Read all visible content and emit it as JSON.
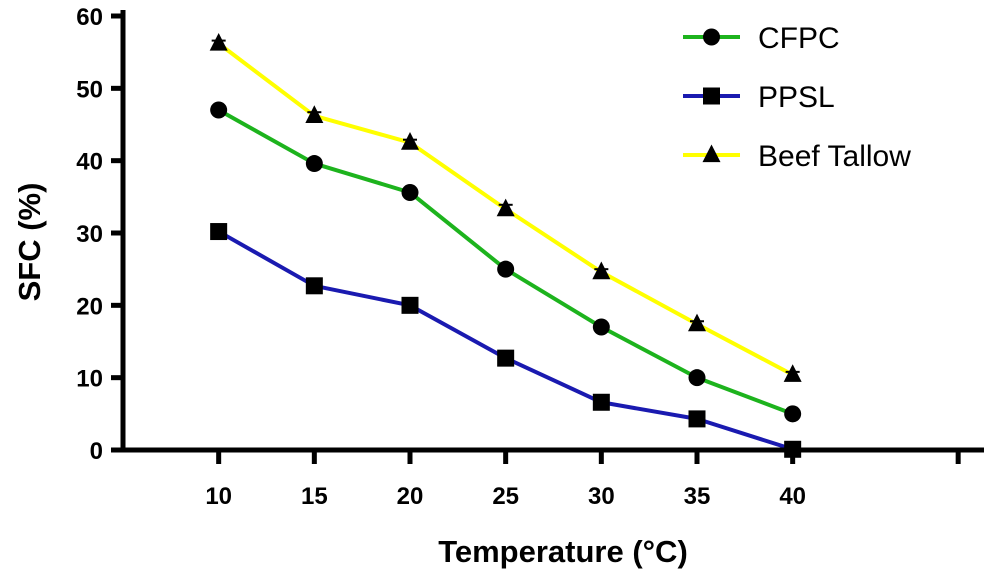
{
  "chart_data": {
    "type": "line",
    "title": "",
    "xlabel": "Temperature (°C)",
    "ylabel": "SFC (%)",
    "xlim": [
      5,
      50
    ],
    "ylim": [
      0,
      60
    ],
    "x": [
      10,
      15,
      20,
      25,
      30,
      35,
      40
    ],
    "xticks": [
      10,
      15,
      20,
      25,
      30,
      35,
      40
    ],
    "yticks": [
      0,
      10,
      20,
      30,
      40,
      50,
      60
    ],
    "grid": false,
    "legend": "top-right",
    "series": [
      {
        "name": "CFPC",
        "color": "#1DB31D",
        "marker": "circle",
        "values": [
          47.0,
          39.6,
          35.6,
          25.0,
          17.0,
          10.0,
          5.0
        ],
        "errors": [
          0,
          0,
          0,
          0,
          0,
          0,
          0
        ]
      },
      {
        "name": "PPSL",
        "color": "#1A1AB0",
        "marker": "square",
        "values": [
          30.2,
          22.7,
          20.0,
          12.7,
          6.6,
          4.3,
          0.1
        ],
        "errors": [
          0,
          0,
          0,
          0,
          0,
          0,
          0
        ]
      },
      {
        "name": "Beef Tallow",
        "color": "#FFFF00",
        "marker": "triangle",
        "values": [
          56.2,
          46.2,
          42.5,
          33.3,
          24.6,
          17.4,
          10.4
        ],
        "errors": [
          0.4,
          0.5,
          0.4,
          0.6,
          0.4,
          0.4,
          0.4
        ]
      }
    ]
  }
}
